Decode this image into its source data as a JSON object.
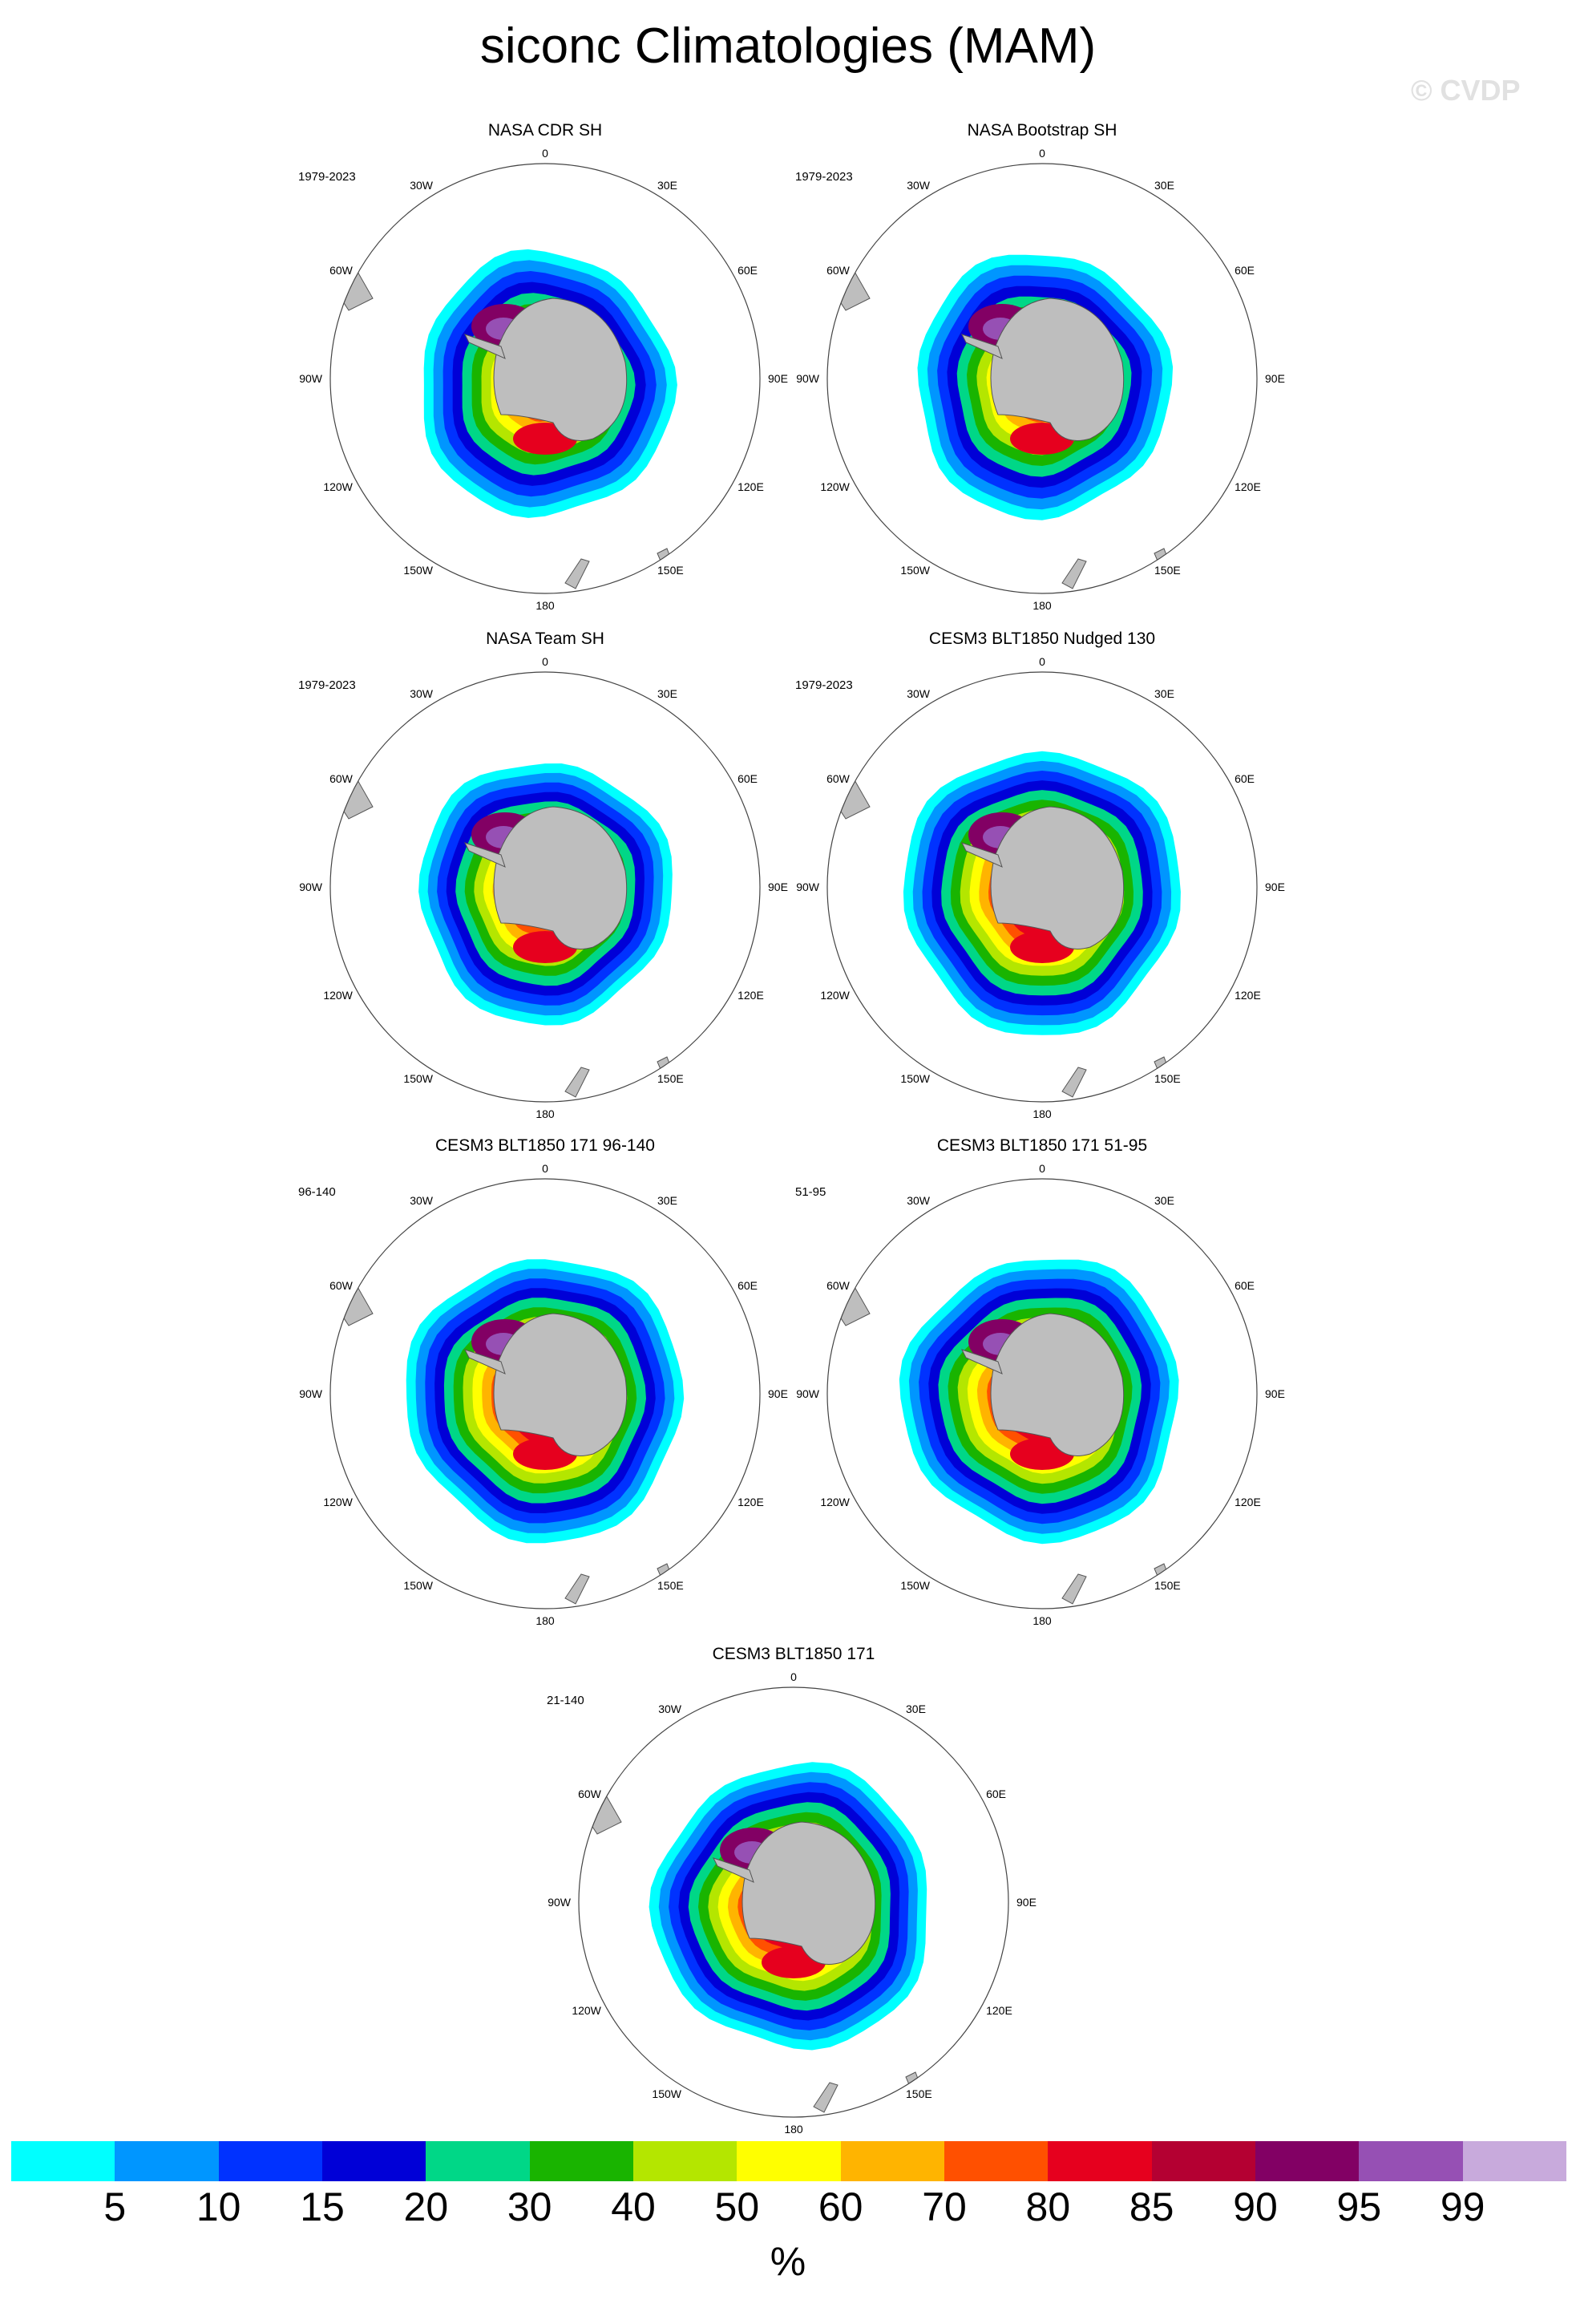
{
  "title": "siconc Climatologies (MAM)",
  "watermark": "© CVDP",
  "panels": [
    {
      "title": "NASA CDR SH",
      "period": "1979-2023",
      "style": "obs"
    },
    {
      "title": "NASA Bootstrap SH",
      "period": "1979-2023",
      "style": "obs"
    },
    {
      "title": "NASA Team SH",
      "period": "1979-2023",
      "style": "team"
    },
    {
      "title": "CESM3 BLT1850 Nudged 130",
      "period": "1979-2023",
      "style": "model"
    },
    {
      "title": "CESM3 BLT1850 171 96-140",
      "period": "96-140",
      "style": "model"
    },
    {
      "title": "CESM3 BLT1850 171 51-95",
      "period": "51-95",
      "style": "model"
    },
    {
      "title": "CESM3 BLT1850 171",
      "period": "21-140",
      "style": "model"
    }
  ],
  "map_labels": {
    "top": "0",
    "bottom": "180",
    "n30e": "30E",
    "n60e": "60E",
    "e90": "90E",
    "s120e": "120E",
    "s150e": "150E",
    "n30w": "30W",
    "n60w": "60W",
    "w90": "90W",
    "s120w": "120W",
    "s150w": "150W"
  },
  "colors": {
    "land": "#bebebe",
    "levels": [
      "#00ffff",
      "#0096ff",
      "#0032ff",
      "#0000d7",
      "#00d787",
      "#19b400",
      "#b4e600",
      "#ffff00",
      "#ffb400",
      "#ff5000",
      "#e6001e",
      "#b40032",
      "#820064",
      "#9650b4",
      "#c8aadc"
    ]
  },
  "colorbar": {
    "ticks": [
      "5",
      "10",
      "15",
      "20",
      "30",
      "40",
      "50",
      "60",
      "70",
      "80",
      "85",
      "90",
      "95",
      "99"
    ],
    "units": "%"
  }
}
